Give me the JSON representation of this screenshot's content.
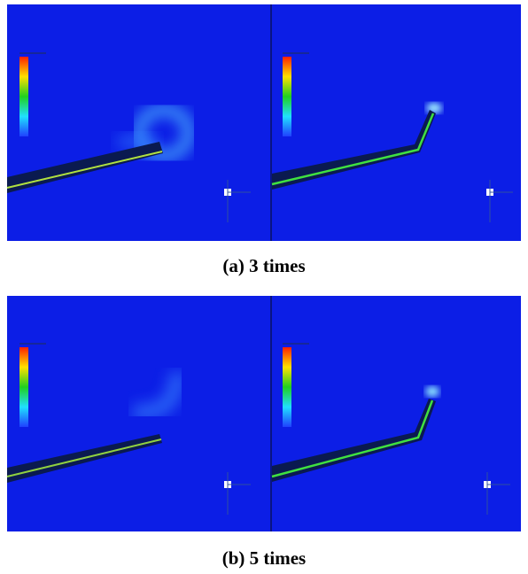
{
  "figures": [
    {
      "caption": "(a) 3 times"
    },
    {
      "caption": "(b) 5 times"
    }
  ]
}
